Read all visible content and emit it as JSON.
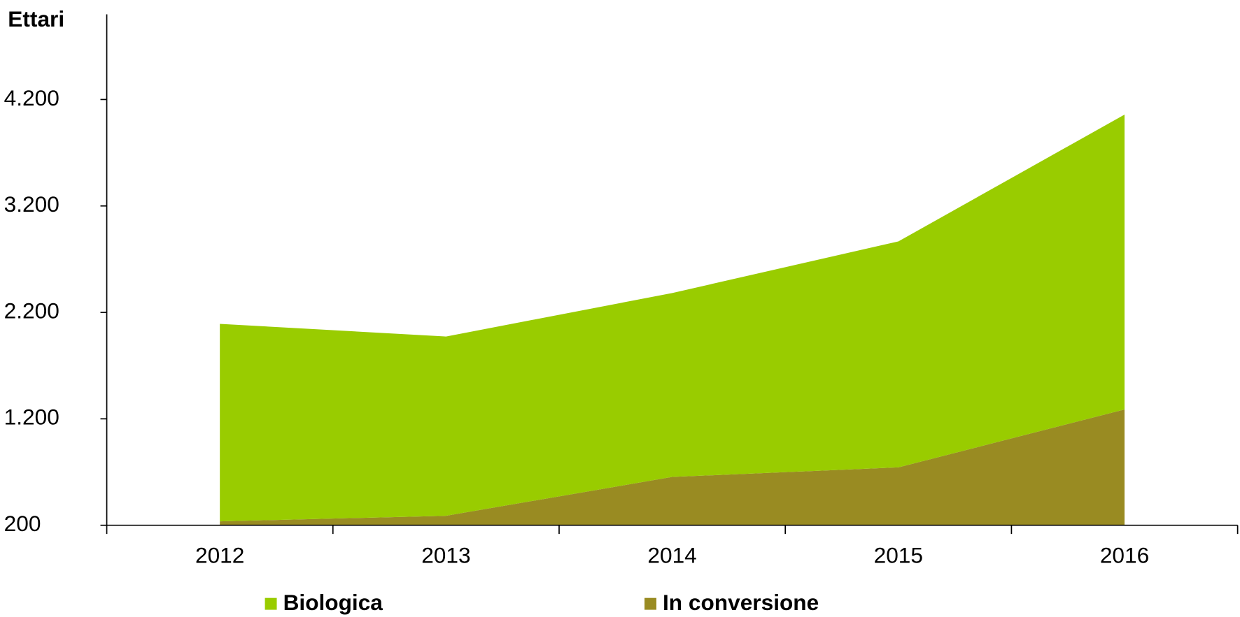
{
  "chart_data": {
    "type": "area",
    "stacked": true,
    "y_label": "Ettari",
    "categories": [
      "2012",
      "2013",
      "2014",
      "2015",
      "2016"
    ],
    "series": [
      {
        "name": "Biologica",
        "color": "#99cc00",
        "values": [
          1855,
          1684,
          1728,
          2123,
          2770
        ]
      },
      {
        "name": "In conversione",
        "color": "#998b22",
        "values": [
          237,
          289,
          654,
          744,
          1288
        ]
      }
    ],
    "ylim": [
      200,
      5000
    ],
    "yticks": [
      200,
      {
        "value": 1200,
        "label": "1.200"
      },
      {
        "value": 2200,
        "label": "2.200"
      },
      {
        "value": 3200,
        "label": "3.200"
      },
      {
        "value": 4200,
        "label": "4.200"
      }
    ]
  }
}
